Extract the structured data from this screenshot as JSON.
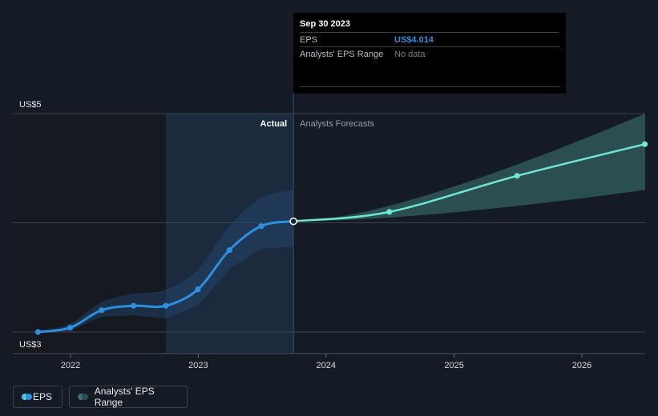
{
  "chart_data": {
    "type": "line",
    "y_axis": {
      "top_label": "US$5",
      "bottom_label": "US$3",
      "ylim": [
        3,
        5
      ]
    },
    "x_ticks": [
      "2022",
      "2023",
      "2024",
      "2025",
      "2026"
    ],
    "section_labels": {
      "actual": "Actual",
      "forecast": "Analysts Forecasts"
    },
    "series": [
      {
        "name": "EPS",
        "kind": "actual",
        "x": [
          "2021-09-30",
          "2021-12-31",
          "2022-03-31",
          "2022-06-30",
          "2022-09-30",
          "2022-12-31",
          "2023-03-31",
          "2023-06-30",
          "2023-09-30"
        ],
        "values": [
          3.0,
          3.04,
          3.2,
          3.24,
          3.24,
          3.39,
          3.75,
          3.97,
          4.014
        ]
      },
      {
        "name": "EPS",
        "kind": "forecast",
        "x": [
          "2023-09-30",
          "2024-06-30",
          "2025-06-30",
          "2026-06-30"
        ],
        "values": [
          4.014,
          4.1,
          4.43,
          4.72
        ]
      },
      {
        "name": "Analysts' EPS Range",
        "kind": "range",
        "x": [
          "2023-09-30",
          "2026-06-30"
        ],
        "low": [
          4.014,
          4.3
        ],
        "high": [
          4.014,
          5.0
        ]
      }
    ],
    "colors": {
      "eps_line": "#2d8fe0",
      "forecast_line": "#6fe6d6",
      "range_fill": "#2f5858",
      "past_band": "#1b2a3c",
      "grid": "#3a414c",
      "marker_focus": "#ffffff"
    },
    "grid": true
  },
  "tooltip": {
    "date": "Sep 30 2023",
    "eps_label": "EPS",
    "eps_value": "US$4.014",
    "range_label": "Analysts' EPS Range",
    "range_value": "No data"
  },
  "legend": {
    "eps_label": "EPS",
    "range_label": "Analysts' EPS Range",
    "eps_colors": [
      "#4fc3e8",
      "#2d8fe0"
    ],
    "range_colors": [
      "#3a6f78",
      "#2a4d58"
    ]
  }
}
